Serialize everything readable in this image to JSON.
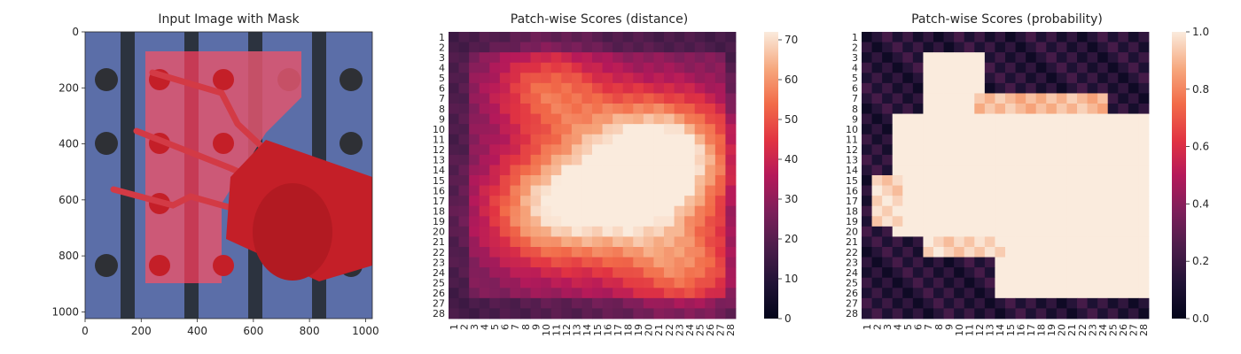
{
  "chart_data": [
    {
      "type": "image",
      "title": "Input Image with Mask",
      "xticks": [
        0,
        200,
        400,
        600,
        800,
        1000
      ],
      "yticks": [
        0,
        200,
        400,
        600,
        800,
        1000
      ],
      "xlim": [
        0,
        1024
      ],
      "ylim": [
        0,
        1024
      ],
      "colors": {
        "background": "#5b6ea8",
        "stripe": "#2c333f",
        "mask": "#e0566f",
        "object": "#c41f28",
        "hole": "#2e3035"
      }
    },
    {
      "type": "heatmap",
      "title": "Patch-wise Scores (distance)",
      "rows": [
        "1",
        "2",
        "3",
        "4",
        "5",
        "6",
        "7",
        "8",
        "9",
        "10",
        "11",
        "12",
        "13",
        "14",
        "15",
        "16",
        "17",
        "18",
        "19",
        "20",
        "21",
        "22",
        "23",
        "24",
        "25",
        "26",
        "27",
        "28"
      ],
      "cols": [
        "1",
        "2",
        "3",
        "4",
        "5",
        "6",
        "7",
        "8",
        "9",
        "10",
        "11",
        "12",
        "13",
        "14",
        "15",
        "16",
        "17",
        "18",
        "19",
        "20",
        "21",
        "22",
        "23",
        "24",
        "25",
        "26",
        "27",
        "28"
      ],
      "colorbar_ticks": [
        0,
        10,
        20,
        30,
        40,
        50,
        60,
        70
      ],
      "vmin": 0,
      "vmax": 72,
      "colormap": "rocket",
      "hotspots": [
        {
          "row": 17,
          "col": 17,
          "value": 72
        },
        {
          "row": 13,
          "col": 23,
          "value": 68
        },
        {
          "row": 18,
          "col": 9,
          "value": 62
        },
        {
          "row": 5,
          "col": 9,
          "value": 58
        },
        {
          "row": 25,
          "col": 24,
          "value": 56
        }
      ]
    },
    {
      "type": "heatmap",
      "title": "Patch-wise Scores (probability)",
      "rows": [
        "1",
        "2",
        "3",
        "4",
        "5",
        "6",
        "7",
        "8",
        "9",
        "10",
        "11",
        "12",
        "13",
        "14",
        "15",
        "16",
        "17",
        "18",
        "19",
        "20",
        "21",
        "22",
        "23",
        "24",
        "25",
        "26",
        "27",
        "28"
      ],
      "cols": [
        "1",
        "2",
        "3",
        "4",
        "5",
        "6",
        "7",
        "8",
        "9",
        "10",
        "11",
        "12",
        "13",
        "14",
        "15",
        "16",
        "17",
        "18",
        "19",
        "20",
        "21",
        "22",
        "23",
        "24",
        "25",
        "26",
        "27",
        "28"
      ],
      "colorbar_ticks": [
        0.0,
        0.2,
        0.4,
        0.6,
        0.8,
        1.0
      ],
      "colorbar_tick_labels": [
        "0.0",
        "0.2",
        "0.4",
        "0.6",
        "0.8",
        "1.0"
      ],
      "vmin": 0.0,
      "vmax": 1.0,
      "colormap": "rocket"
    }
  ]
}
